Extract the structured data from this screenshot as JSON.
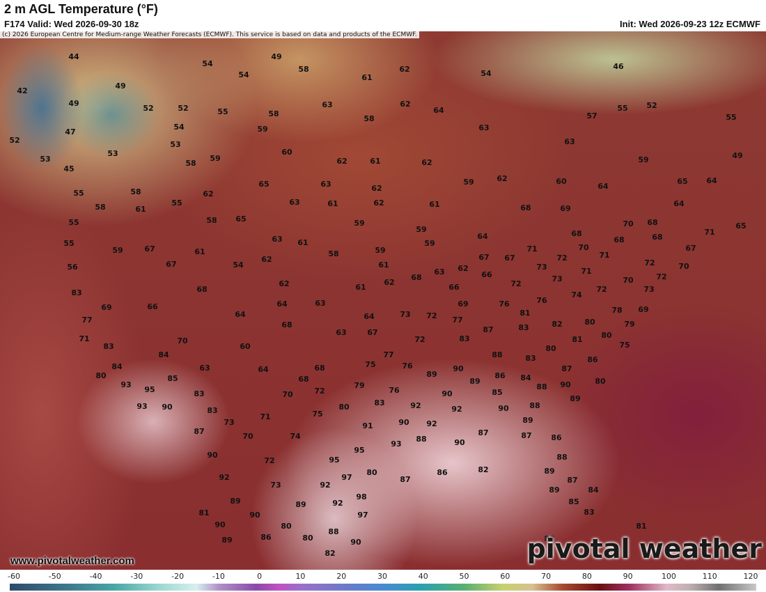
{
  "header": {
    "title": "2 m AGL Temperature (°F)",
    "valid": "F174 Valid: Wed 2026-09-30 18z",
    "init": "Init: Wed 2026-09-23 12z ECMWF"
  },
  "map": {
    "credit": "(c) 2026 European Centre for Medium-range Weather Forecasts (ECMWF). This service is based on data and products of the ECMWF.",
    "url": "www.pivotalweather.com",
    "watermark": "pivotal weather",
    "labels": [
      44,
      49,
      54,
      58,
      54,
      62,
      54,
      46,
      42,
      49,
      61,
      49,
      52,
      52,
      55,
      63,
      62,
      64,
      55,
      52,
      58,
      58,
      57,
      55,
      47,
      54,
      59,
      63,
      52,
      53,
      53,
      53,
      60,
      63,
      59,
      58,
      62,
      61,
      62,
      59,
      49,
      45,
      55,
      58,
      65,
      63,
      62,
      59,
      62,
      60,
      64,
      65,
      64,
      62,
      58,
      61,
      55,
      63,
      61,
      62,
      61,
      68,
      69,
      64,
      55,
      58,
      65,
      59,
      70,
      68,
      71,
      65,
      59,
      64,
      68,
      68,
      68,
      55,
      59,
      67,
      61,
      63,
      61,
      58,
      59,
      59,
      67,
      67,
      71,
      72,
      70,
      71,
      67,
      54,
      62,
      56,
      67,
      61,
      63,
      62,
      73,
      71,
      72,
      70,
      83,
      68,
      62,
      61,
      62,
      68,
      66,
      66,
      72,
      73,
      72,
      70,
      73,
      72,
      69,
      66,
      64,
      63,
      69,
      76,
      76,
      74,
      78,
      69,
      77,
      64,
      68,
      64,
      73,
      72,
      77,
      87,
      81,
      83,
      82,
      80,
      79,
      71,
      70,
      63,
      67,
      72,
      83,
      81,
      80,
      83,
      84,
      60,
      77,
      88,
      80,
      75,
      84,
      63,
      64,
      68,
      75,
      76,
      90,
      83,
      87,
      86,
      80,
      85,
      68,
      89,
      89,
      86,
      84,
      80,
      93,
      95,
      83,
      70,
      72,
      79,
      76,
      90,
      85,
      88,
      90,
      93,
      90,
      83,
      80,
      83,
      92,
      92,
      90,
      88,
      89,
      75,
      73,
      71,
      90,
      92,
      89,
      87,
      70,
      74,
      91,
      88,
      90,
      87,
      87,
      86,
      90,
      93,
      95,
      95,
      88,
      72,
      80,
      92,
      97,
      87,
      86,
      82,
      89,
      87,
      73,
      92,
      89,
      98,
      89,
      85,
      84,
      89,
      92,
      81,
      90,
      97,
      90,
      83,
      80,
      81,
      88,
      89,
      86,
      80,
      90,
      88,
      82
    ]
  },
  "colorbar": {
    "ticks": [
      -60,
      -50,
      -40,
      -30,
      -20,
      -10,
      0,
      10,
      20,
      30,
      40,
      50,
      60,
      70,
      80,
      90,
      100,
      110,
      120
    ]
  }
}
